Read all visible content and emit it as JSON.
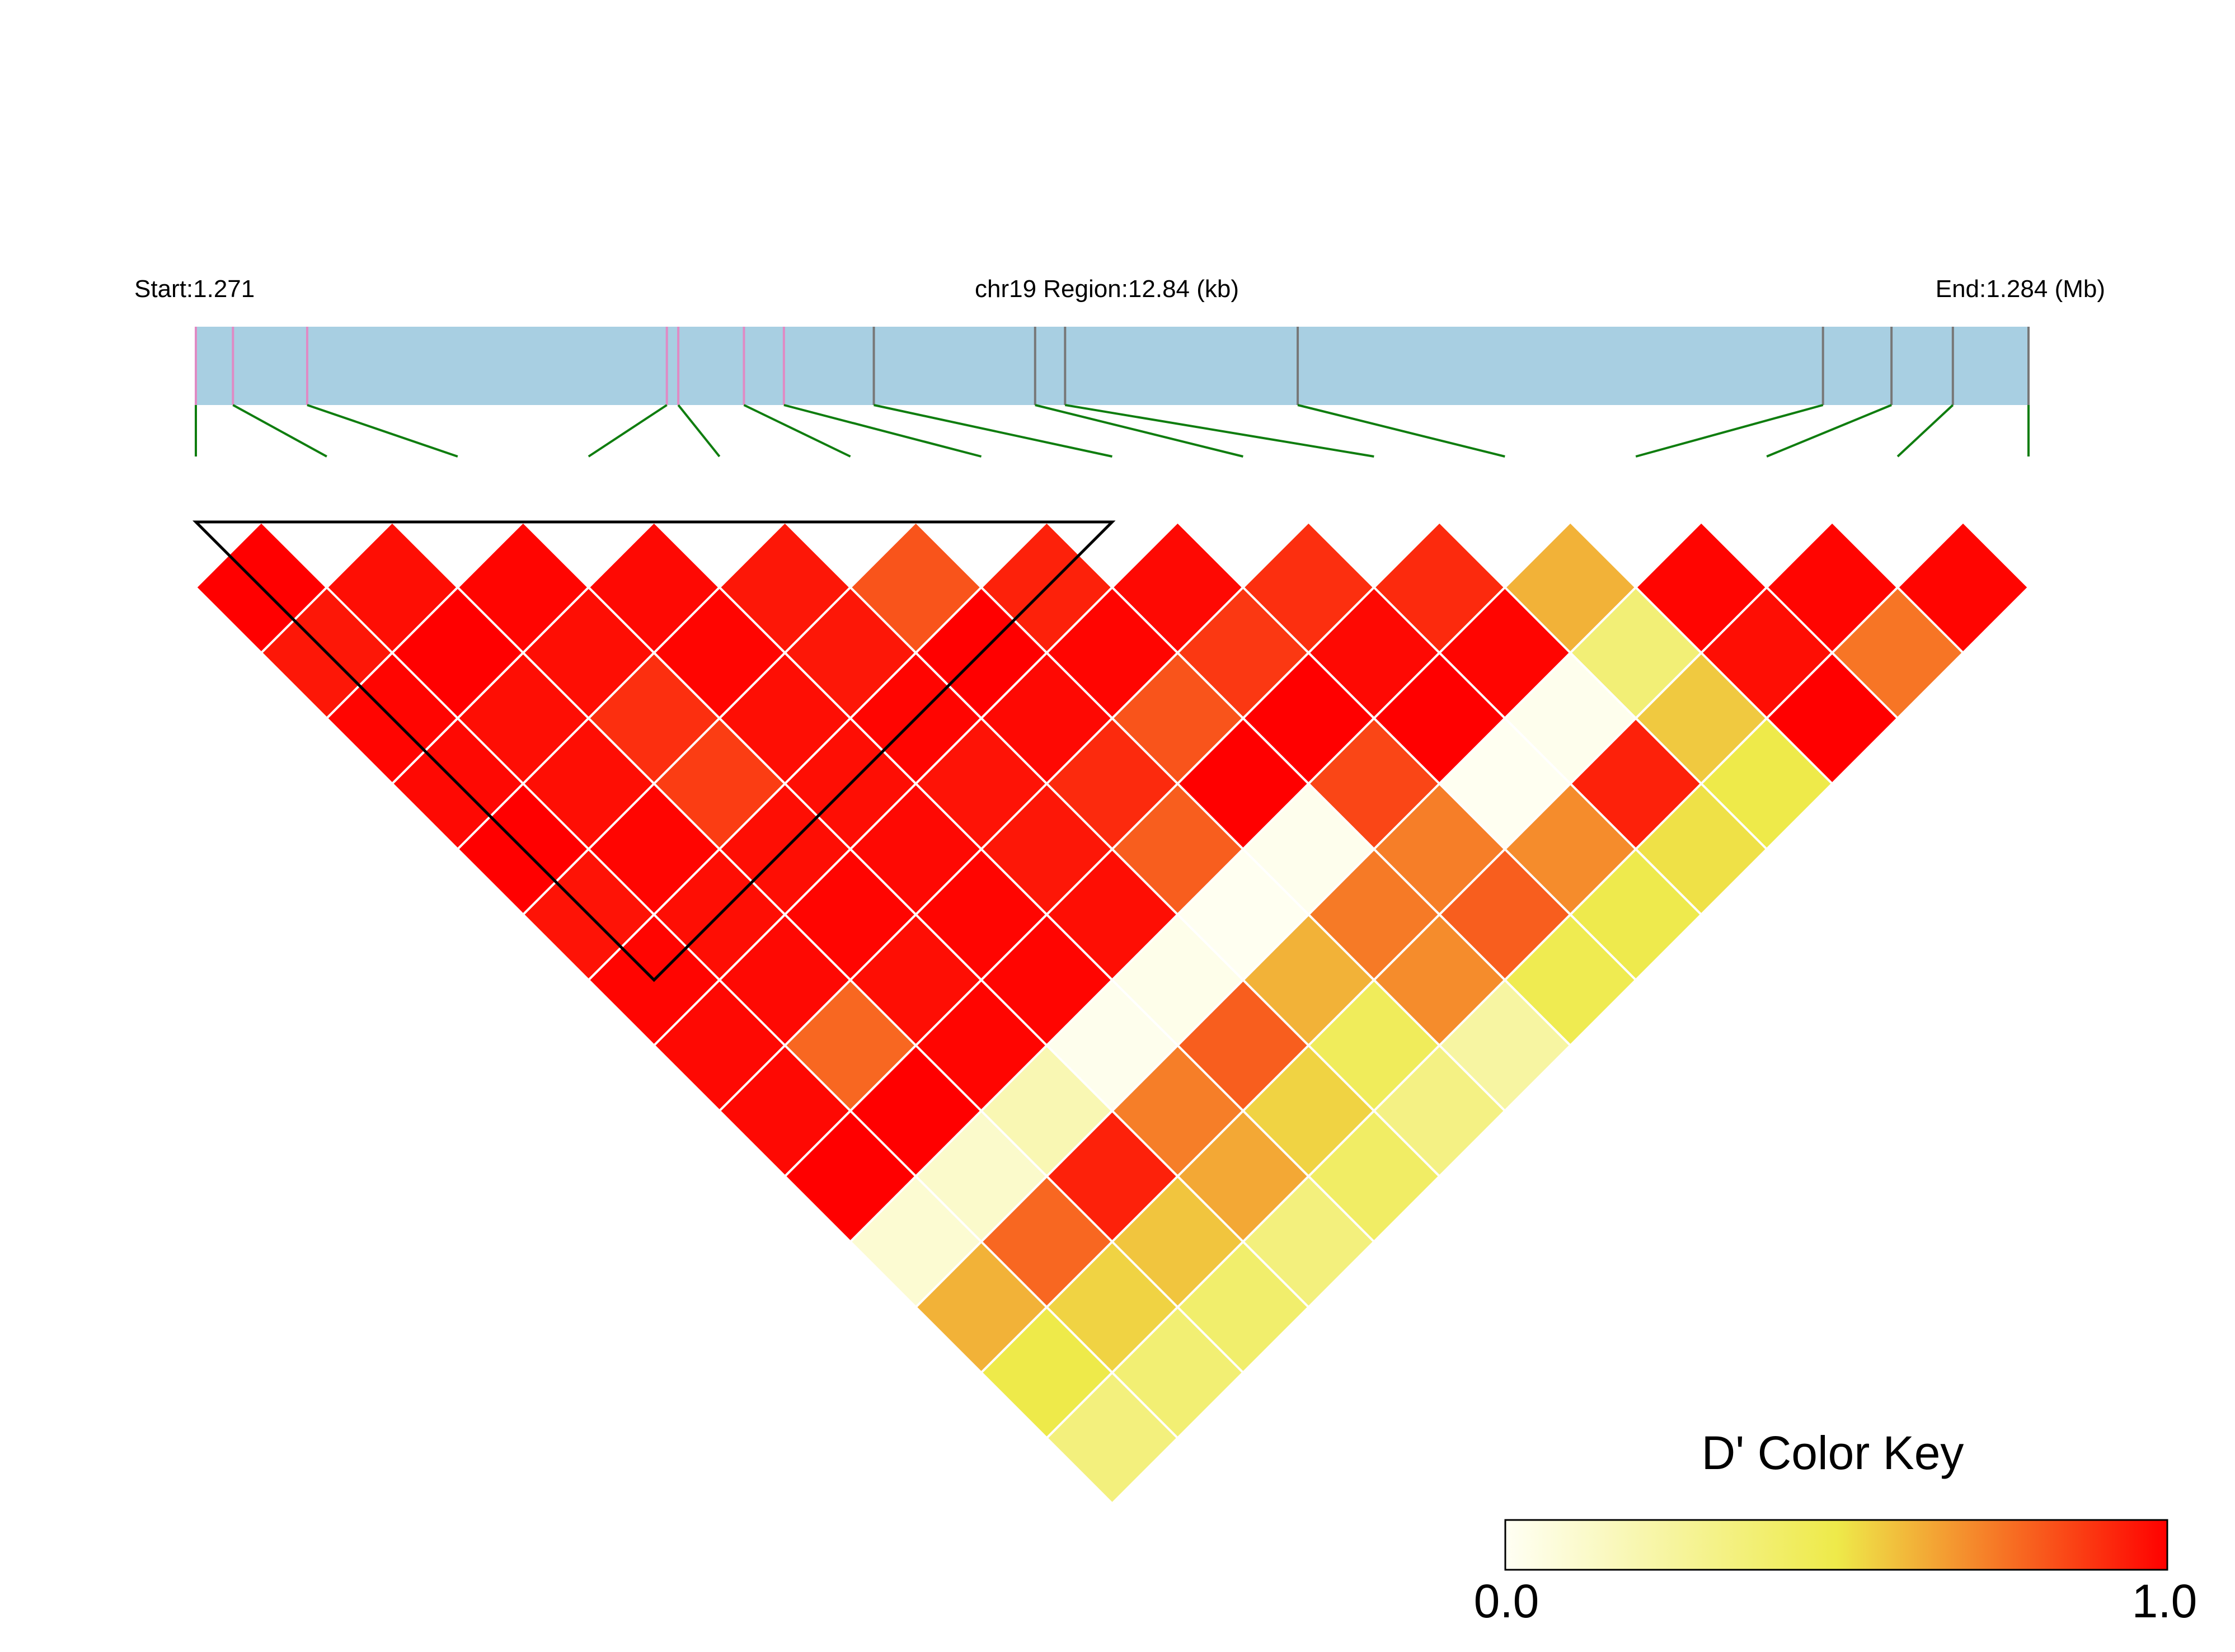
{
  "labels": {
    "start": "Start:1.271",
    "region": "chr19 Region:12.84 (kb)",
    "end": "End:1.284 (Mb)"
  },
  "colors": {
    "track": "#a8cfe2",
    "marker_pink": "#e08ac4",
    "marker_gray": "#777777",
    "connector": "#0f7d0f",
    "cell_border": "#ffffff",
    "block_outline": "#000000",
    "key_low": "#fffff4",
    "key_mid": "#eeea4a",
    "key_high": "#ff0000"
  },
  "chart_data": {
    "type": "heatmap",
    "title": "",
    "metric": "D'",
    "region": {
      "chromosome": "chr19",
      "start_mb": 1.271,
      "end_mb": 1.284,
      "length_kb": 12.84
    },
    "snp_count": 15,
    "snp_marker_colors": [
      "pink",
      "pink",
      "pink",
      "pink",
      "pink",
      "pink",
      "pink",
      "gray",
      "gray",
      "gray",
      "gray",
      "gray",
      "gray",
      "gray",
      "gray"
    ],
    "dprime": [
      [
        1.0,
        0.97,
        0.99,
        0.98,
        0.95,
        0.82,
        0.93,
        0.98,
        0.9,
        0.91,
        0.62,
        0.99,
        0.99,
        0.99
      ],
      [
        0.95,
        1.0,
        0.97,
        0.99,
        0.95,
        1.0,
        0.99,
        0.88,
        0.98,
        0.99,
        0.37,
        0.97,
        0.75,
        0.96
      ],
      [
        0.99,
        0.97,
        0.9,
        0.97,
        0.99,
        0.98,
        0.82,
        1.0,
        1.0,
        0.02,
        0.57,
        1.0,
        0.2,
        0.28
      ],
      [
        0.98,
        0.97,
        0.87,
        0.97,
        0.96,
        0.91,
        1.0,
        0.85,
        0.01,
        0.93,
        0.5,
        1.0,
        0.33
      ],
      [
        1.0,
        0.99,
        0.97,
        0.98,
        0.95,
        0.8,
        0.02,
        0.73,
        0.7,
        0.52,
        0.36,
        1.0
      ],
      [
        0.96,
        0.97,
        0.99,
        0.99,
        0.97,
        0.01,
        0.74,
        0.8,
        0.49,
        0.37,
        0.3
      ],
      [
        0.99,
        0.98,
        0.97,
        0.99,
        0.03,
        0.62,
        0.7,
        0.48,
        0.38,
        0.35
      ],
      [
        0.98,
        0.78,
        0.99,
        0.02,
        0.8,
        0.45,
        0.24,
        0.4
      ],
      [
        0.98,
        1.0,
        0.19,
        0.73,
        0.55,
        0.33,
        0.42
      ],
      [
        1.0,
        0.12,
        0.93,
        0.64,
        0.42,
        0.37
      ],
      [
        0.1,
        0.78,
        0.58,
        0.35,
        0.38
      ],
      [
        0.62,
        0.55,
        0.4
      ],
      [
        0.5,
        0.38
      ],
      [
        0.35
      ]
    ],
    "ld_block": {
      "from_snp": 1,
      "to_snp": 8
    },
    "color_key": {
      "title": "D' Color Key",
      "min_label": "0.0",
      "max_label": "1.0",
      "min": 0.0,
      "max": 1.0
    }
  }
}
